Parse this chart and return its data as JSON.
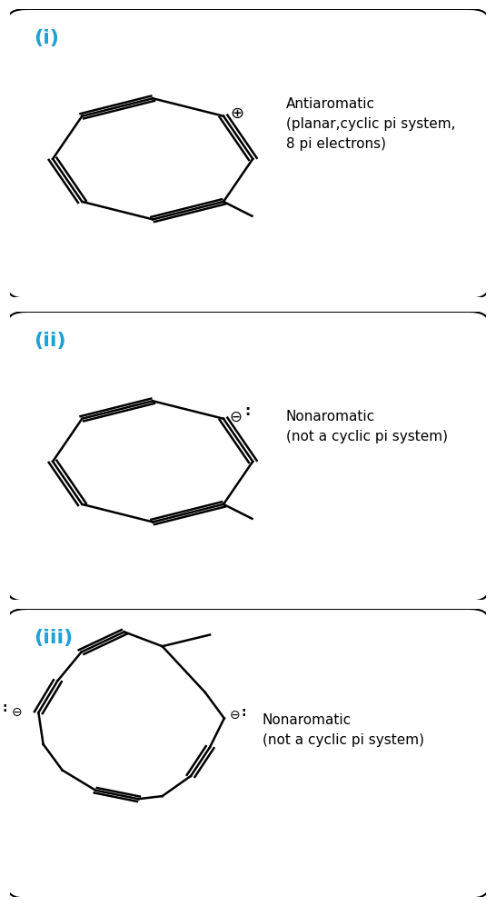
{
  "panel_label_color": "#1da1d6",
  "text_color": "#000000",
  "bg_color": "#ffffff",
  "border_color": "#000000",
  "panel_labels": [
    "(i)",
    "(ii)",
    "(iii)"
  ],
  "panel1_title": "Antiaromatic\n(planar,cyclic pi system,\n8 pi electrons)",
  "panel2_title": "Nonaromatic\n(not a cyclic pi system)",
  "panel3_title": "Nonaromatic\n(not a cyclic pi system)",
  "figsize": [
    5.46,
    9.97
  ],
  "dpi": 100
}
